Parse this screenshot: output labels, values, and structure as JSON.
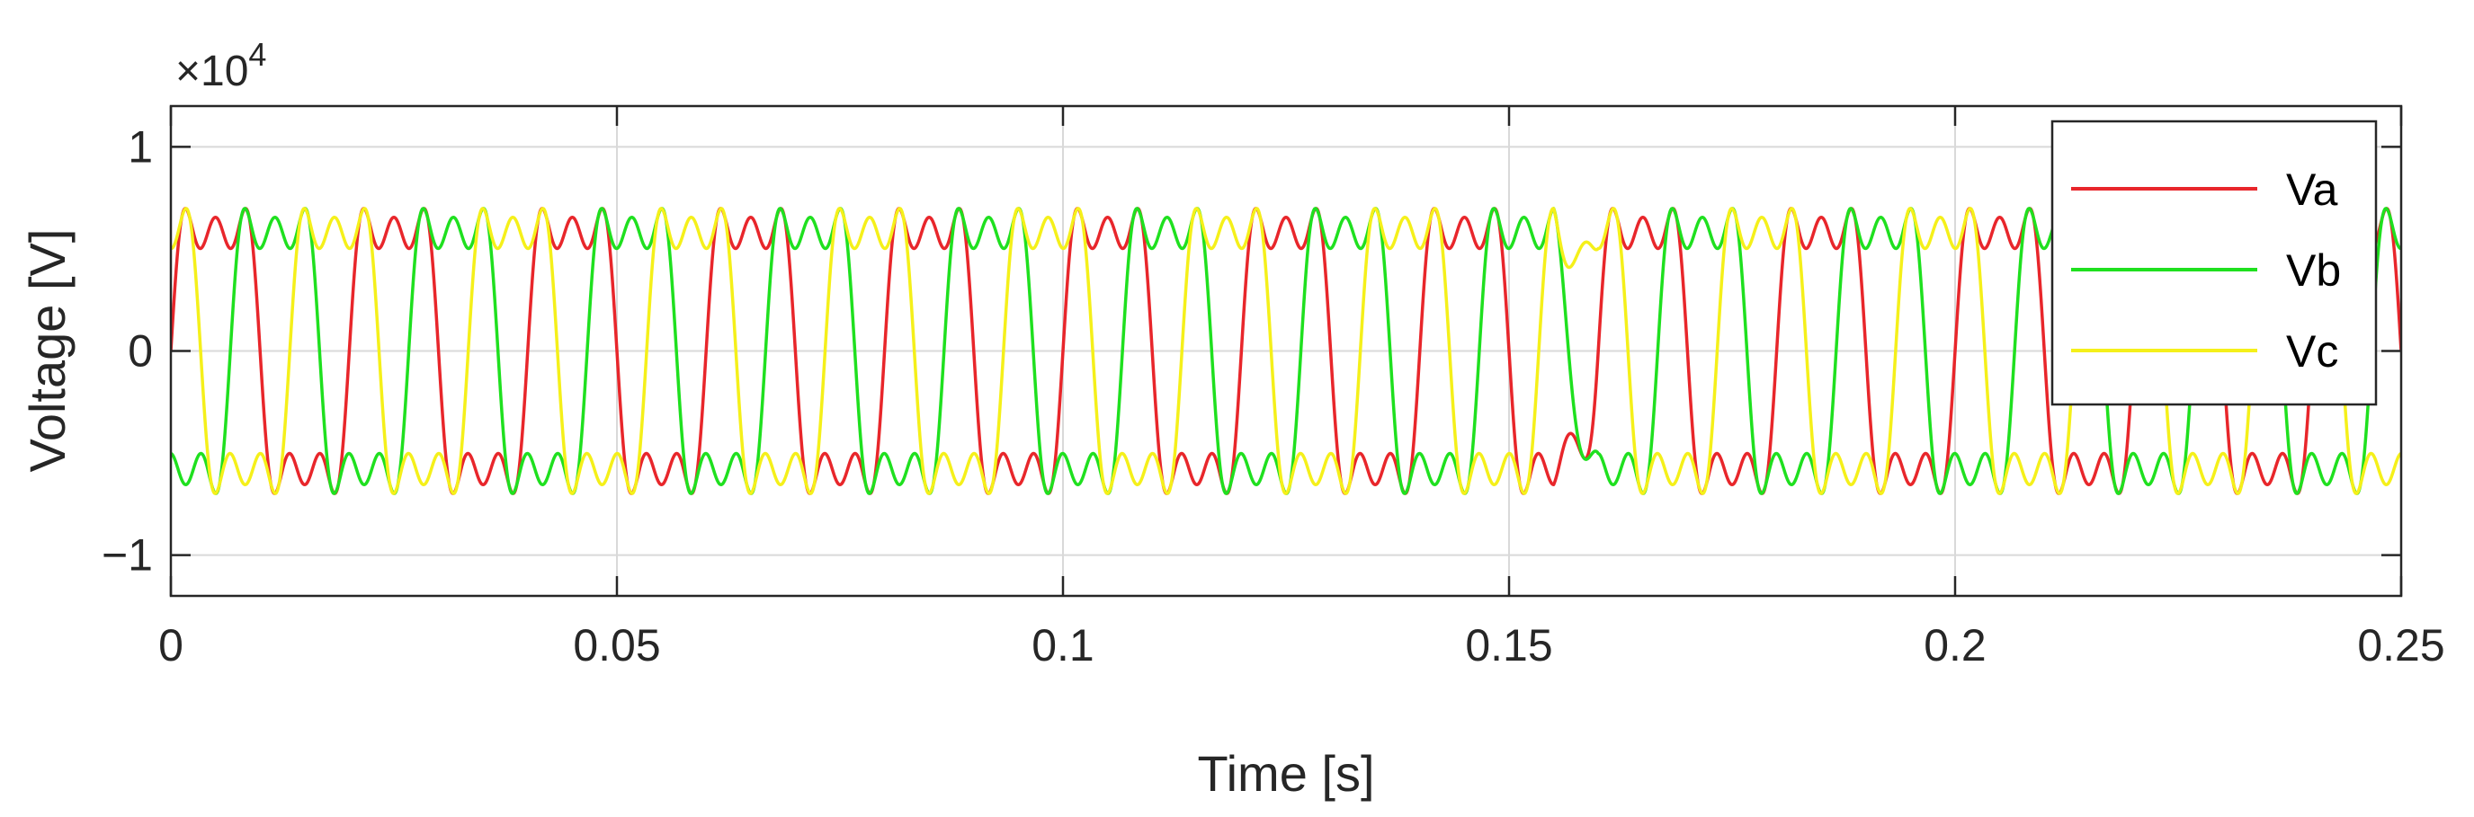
{
  "chart_data": {
    "type": "line",
    "title": "",
    "xlabel": "Time [s]",
    "ylabel": "Voltage [V]",
    "xlim": [
      0,
      0.25
    ],
    "ylim": [
      -1.2,
      1.2
    ],
    "y_multiplier": {
      "base": "×10",
      "exponent": "4"
    },
    "x_ticks": [
      {
        "value": 0,
        "label": "0"
      },
      {
        "value": 0.05,
        "label": "0.05"
      },
      {
        "value": 0.1,
        "label": "0.1"
      },
      {
        "value": 0.15,
        "label": "0.15"
      },
      {
        "value": 0.2,
        "label": "0.2"
      },
      {
        "value": 0.25,
        "label": "0.25"
      }
    ],
    "y_ticks": [
      {
        "value": -1,
        "label": "−1"
      },
      {
        "value": 0,
        "label": "0"
      },
      {
        "value": 1,
        "label": "1"
      }
    ],
    "grid": true,
    "legend_position": "top-right",
    "fundamental_hz": 50,
    "disturbance_window_s": [
      0.155,
      0.16
    ],
    "series": [
      {
        "name": "Va",
        "color": "#e8262b",
        "phase_deg": 0,
        "harmonics": [
          {
            "order": 1,
            "amplitude": 0.741,
            "phase_deg": 0
          },
          {
            "order": 3,
            "amplitude": 0.247,
            "phase_deg": 0
          },
          {
            "order": 5,
            "amplitude": 0.161,
            "phase_deg": 0
          }
        ]
      },
      {
        "name": "Vb",
        "color": "#1fe01f",
        "phase_deg": -120,
        "harmonics": [
          {
            "order": 1,
            "amplitude": 0.741,
            "phase_deg": 0
          },
          {
            "order": 3,
            "amplitude": 0.247,
            "phase_deg": 0
          },
          {
            "order": 5,
            "amplitude": 0.161,
            "phase_deg": 0
          }
        ]
      },
      {
        "name": "Vc",
        "color": "#f5f01a",
        "phase_deg": 120,
        "harmonics": [
          {
            "order": 1,
            "amplitude": 0.741,
            "phase_deg": 0
          },
          {
            "order": 3,
            "amplitude": 0.247,
            "phase_deg": 0
          },
          {
            "order": 5,
            "amplitude": 0.161,
            "phase_deg": 0
          }
        ]
      }
    ]
  }
}
